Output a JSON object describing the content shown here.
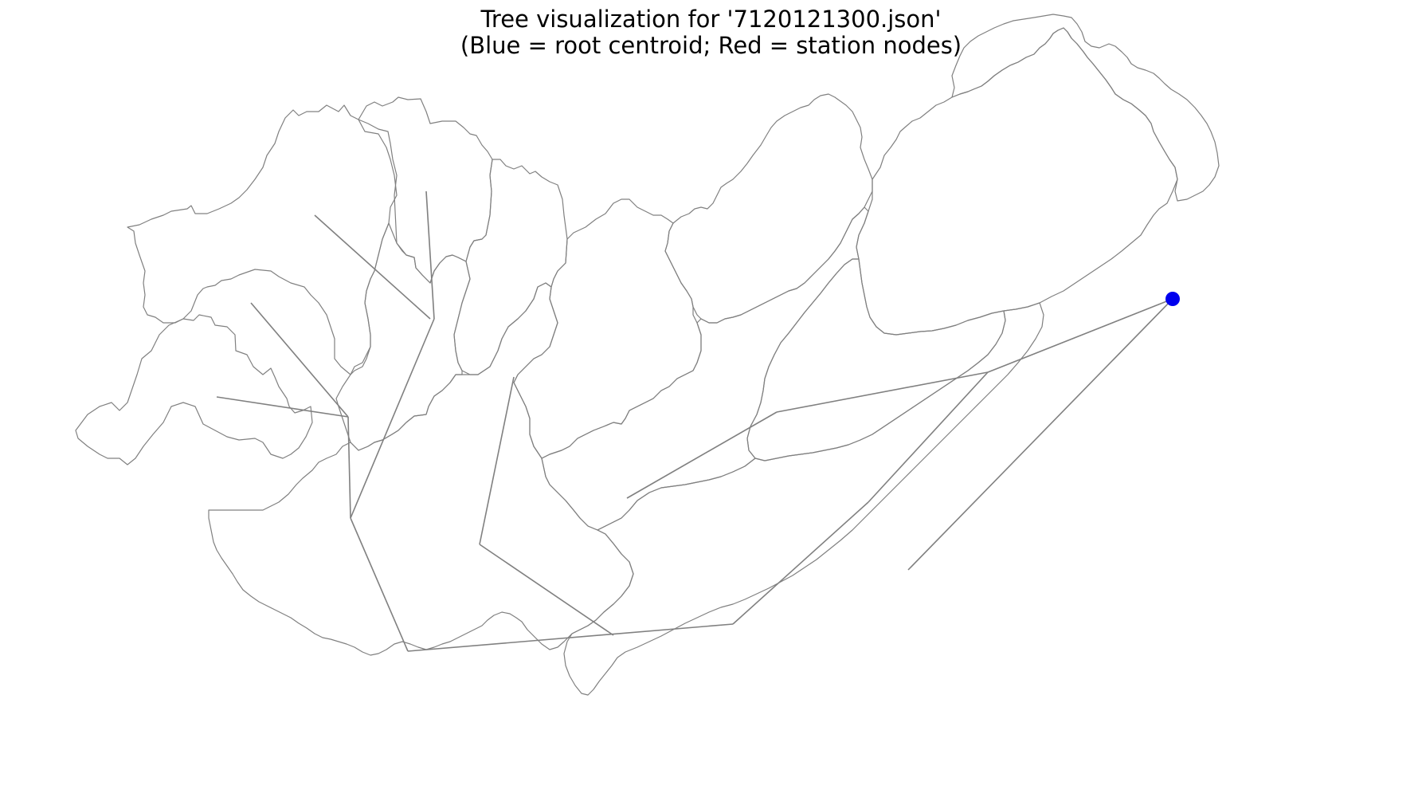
{
  "title": {
    "line1": "Tree visualization for '7120121300.json'",
    "line2": "(Blue = root centroid; Red = station nodes)"
  },
  "colors": {
    "root": "#0000ee",
    "station": "#ff0000",
    "lines": "#808080",
    "background": "#ffffff"
  }
}
